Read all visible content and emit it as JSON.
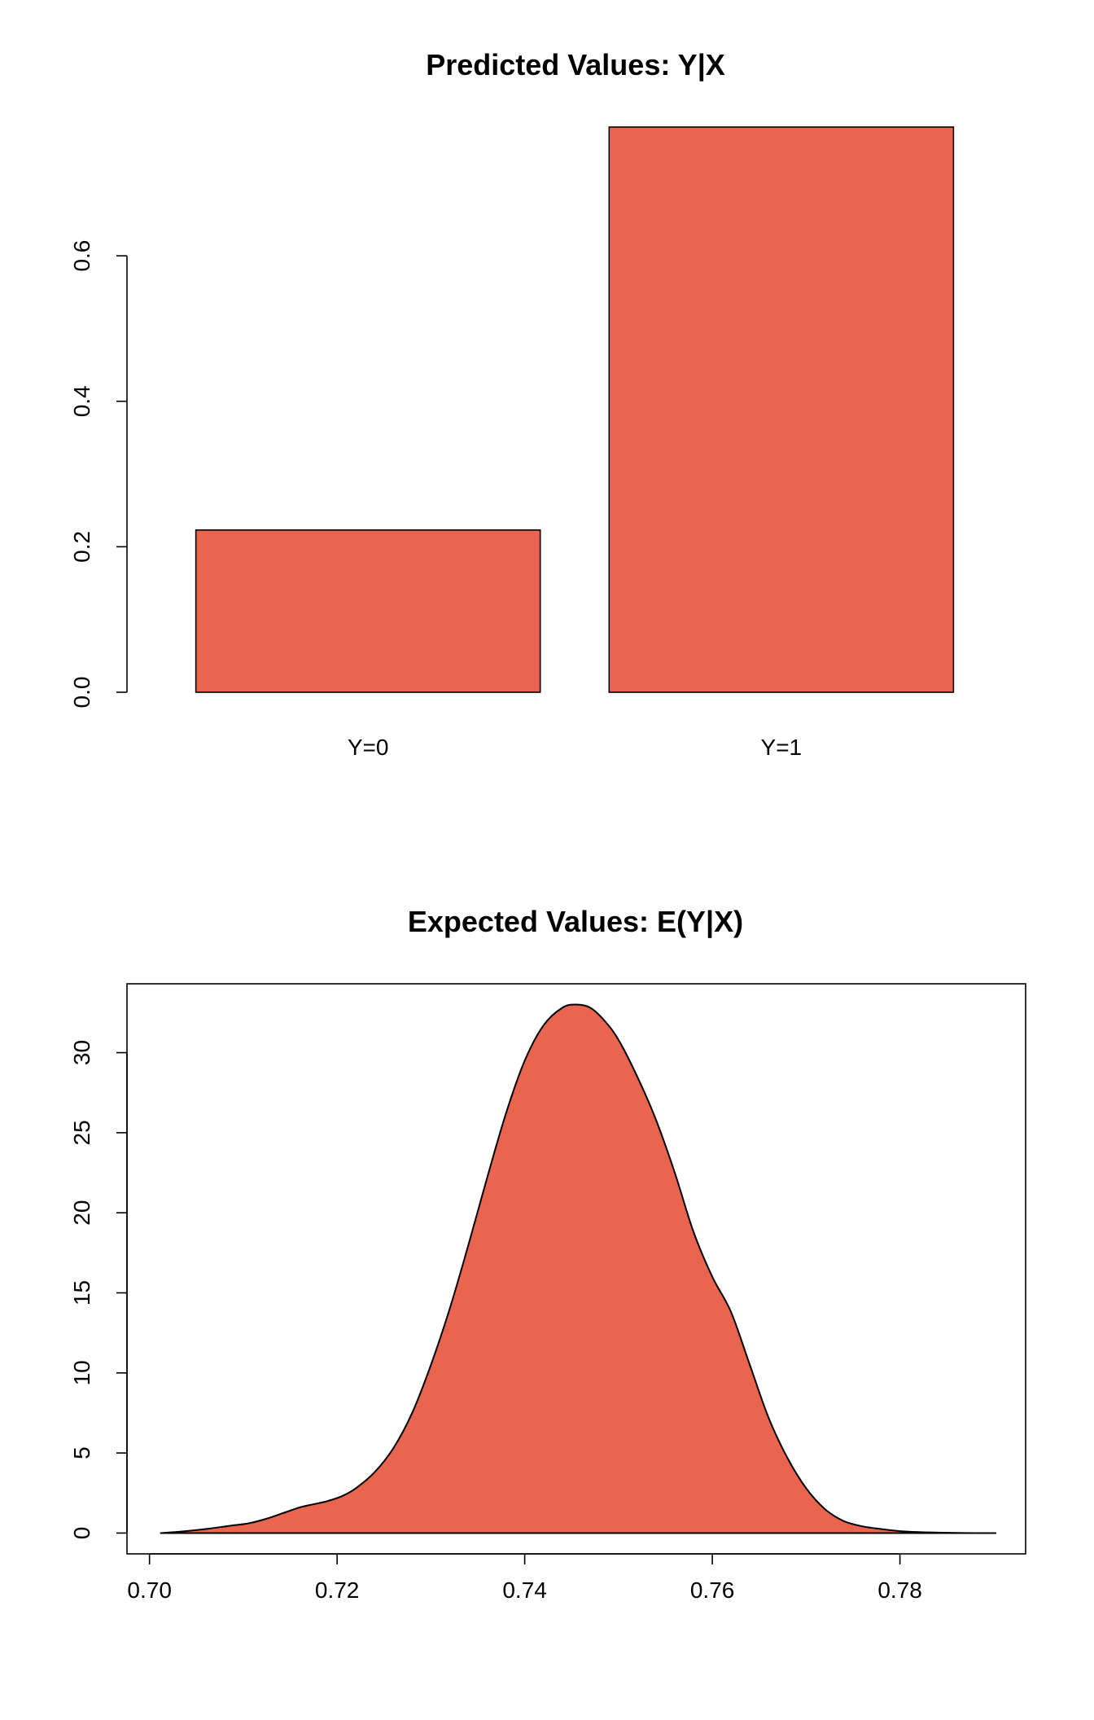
{
  "colors": {
    "fill": "#EA654F",
    "stroke": "#000000",
    "background": "#FFFFFF"
  },
  "chart_data": [
    {
      "type": "bar",
      "title": "Predicted Values: Y|X",
      "xlabel": "",
      "ylabel": "",
      "categories": [
        "Y=0",
        "Y=1"
      ],
      "values": [
        0.223,
        0.777
      ],
      "ylim": [
        0,
        0.777
      ],
      "yticks": [
        0.0,
        0.2,
        0.4,
        0.6
      ],
      "ytick_labels": [
        "0.0",
        "0.2",
        "0.4",
        "0.6"
      ],
      "box": false,
      "grid": false
    },
    {
      "type": "area",
      "title": "Expected Values: E(Y|X)",
      "xlabel": "",
      "ylabel": "",
      "xlim": [
        0.6976,
        0.7934
      ],
      "ylim": [
        -1.3,
        34.3
      ],
      "xticks": [
        0.7,
        0.72,
        0.74,
        0.76,
        0.78
      ],
      "xtick_labels": [
        "0.70",
        "0.72",
        "0.74",
        "0.76",
        "0.78"
      ],
      "yticks": [
        0,
        5,
        10,
        15,
        20,
        25,
        30
      ],
      "ytick_labels": [
        "0",
        "5",
        "10",
        "15",
        "20",
        "25",
        "30"
      ],
      "box": true,
      "grid": false,
      "x": [
        0.7012,
        0.7035,
        0.706,
        0.7085,
        0.7105,
        0.7125,
        0.7145,
        0.716,
        0.7175,
        0.719,
        0.7205,
        0.722,
        0.724,
        0.726,
        0.728,
        0.73,
        0.732,
        0.734,
        0.736,
        0.738,
        0.74,
        0.742,
        0.744,
        0.7455,
        0.747,
        0.7485,
        0.75,
        0.752,
        0.754,
        0.756,
        0.758,
        0.76,
        0.762,
        0.764,
        0.766,
        0.768,
        0.77,
        0.772,
        0.774,
        0.776,
        0.778,
        0.78,
        0.782,
        0.784,
        0.786,
        0.788,
        0.7902
      ],
      "y": [
        0.0,
        0.1,
        0.25,
        0.45,
        0.6,
        0.9,
        1.3,
        1.6,
        1.8,
        2.0,
        2.3,
        2.8,
        3.8,
        5.3,
        7.5,
        10.5,
        14.0,
        18.0,
        22.2,
        26.2,
        29.5,
        31.7,
        32.8,
        33.0,
        32.8,
        32.0,
        30.8,
        28.5,
        25.8,
        22.5,
        18.8,
        16.0,
        13.8,
        10.5,
        7.2,
        4.7,
        2.8,
        1.5,
        0.75,
        0.42,
        0.25,
        0.12,
        0.06,
        0.03,
        0.01,
        0.0,
        0.0
      ]
    }
  ]
}
